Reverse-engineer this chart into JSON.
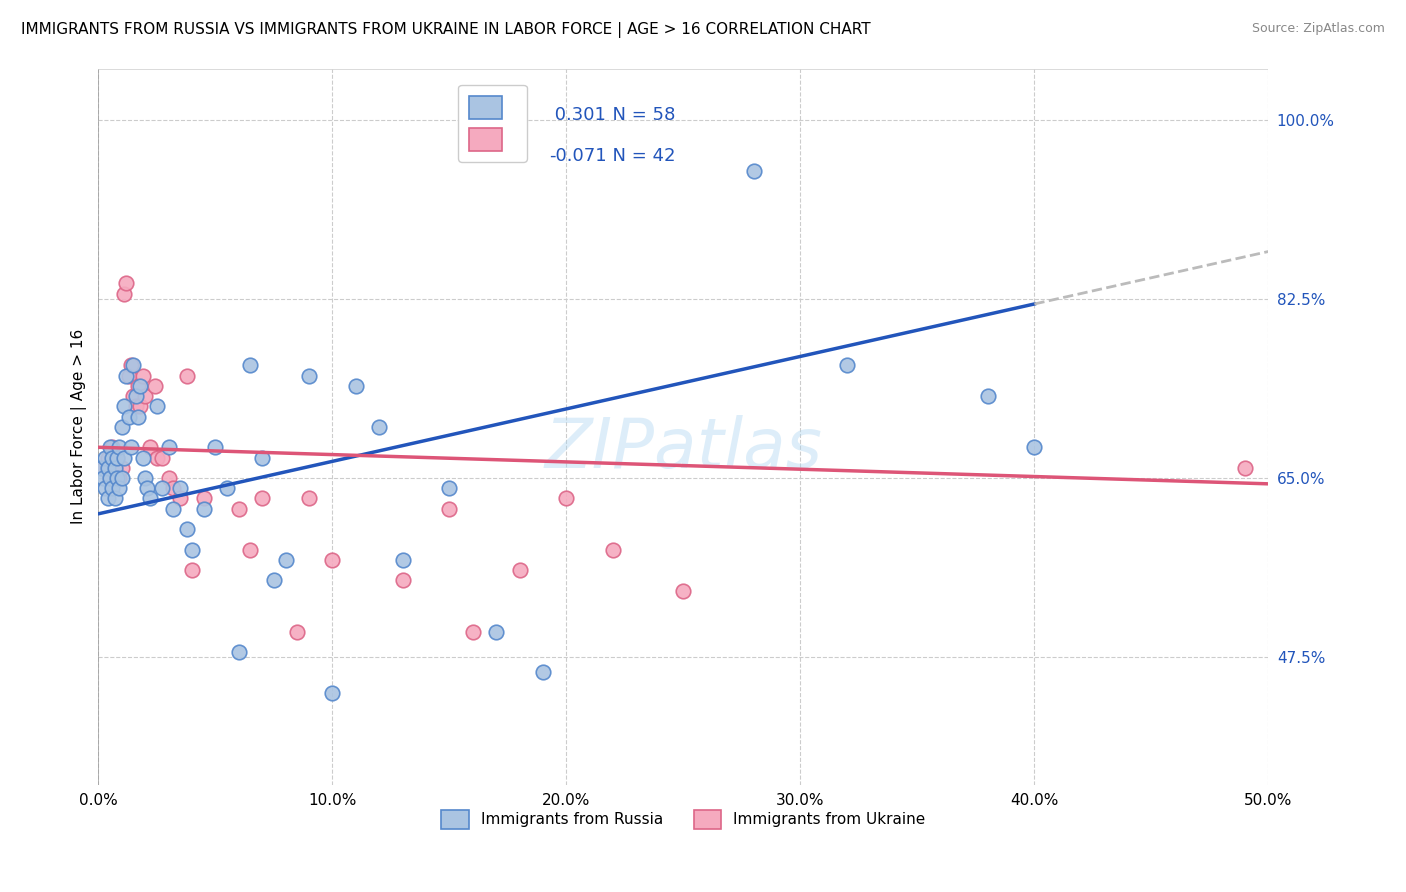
{
  "title": "IMMIGRANTS FROM RUSSIA VS IMMIGRANTS FROM UKRAINE IN LABOR FORCE | AGE > 16 CORRELATION CHART",
  "source": "Source: ZipAtlas.com",
  "ylabel": "In Labor Force | Age > 16",
  "xlim": [
    0.0,
    0.5
  ],
  "ylim": [
    0.35,
    1.05
  ],
  "ytick_positions": [
    0.475,
    0.65,
    0.825,
    1.0
  ],
  "ytick_labels": [
    "47.5%",
    "65.0%",
    "82.5%",
    "100.0%"
  ],
  "xtick_positions": [
    0.0,
    0.1,
    0.2,
    0.3,
    0.4,
    0.5
  ],
  "xtick_labels": [
    "0.0%",
    "10.0%",
    "20.0%",
    "30.0%",
    "40.0%",
    "50.0%"
  ],
  "russia_color": "#aac4e2",
  "ukraine_color": "#f5aabf",
  "russia_edge": "#5588cc",
  "ukraine_edge": "#dd6688",
  "trend_russia_color": "#2255bb",
  "trend_ukraine_color": "#dd5577",
  "trend_ext_color": "#bbbbbb",
  "legend_r_russia": " 0.301",
  "legend_n_russia": "58",
  "legend_r_ukraine": "-0.071",
  "legend_n_ukraine": "42",
  "russia_x": [
    0.001,
    0.002,
    0.003,
    0.003,
    0.004,
    0.004,
    0.005,
    0.005,
    0.006,
    0.006,
    0.007,
    0.007,
    0.008,
    0.008,
    0.009,
    0.009,
    0.01,
    0.01,
    0.011,
    0.011,
    0.012,
    0.013,
    0.014,
    0.015,
    0.016,
    0.017,
    0.018,
    0.019,
    0.02,
    0.021,
    0.022,
    0.025,
    0.027,
    0.03,
    0.032,
    0.035,
    0.038,
    0.04,
    0.045,
    0.05,
    0.055,
    0.06,
    0.065,
    0.07,
    0.075,
    0.08,
    0.09,
    0.1,
    0.11,
    0.12,
    0.13,
    0.15,
    0.17,
    0.19,
    0.28,
    0.32,
    0.38,
    0.4
  ],
  "russia_y": [
    0.66,
    0.65,
    0.67,
    0.64,
    0.66,
    0.63,
    0.68,
    0.65,
    0.67,
    0.64,
    0.66,
    0.63,
    0.67,
    0.65,
    0.68,
    0.64,
    0.7,
    0.65,
    0.72,
    0.67,
    0.75,
    0.71,
    0.68,
    0.76,
    0.73,
    0.71,
    0.74,
    0.67,
    0.65,
    0.64,
    0.63,
    0.72,
    0.64,
    0.68,
    0.62,
    0.64,
    0.6,
    0.58,
    0.62,
    0.68,
    0.64,
    0.48,
    0.76,
    0.67,
    0.55,
    0.57,
    0.75,
    0.44,
    0.74,
    0.7,
    0.57,
    0.64,
    0.5,
    0.46,
    0.95,
    0.76,
    0.73,
    0.68
  ],
  "ukraine_x": [
    0.002,
    0.004,
    0.005,
    0.006,
    0.007,
    0.008,
    0.009,
    0.01,
    0.011,
    0.012,
    0.013,
    0.014,
    0.015,
    0.016,
    0.017,
    0.018,
    0.019,
    0.02,
    0.022,
    0.024,
    0.025,
    0.027,
    0.03,
    0.032,
    0.035,
    0.038,
    0.04,
    0.045,
    0.06,
    0.065,
    0.07,
    0.085,
    0.09,
    0.1,
    0.13,
    0.15,
    0.16,
    0.18,
    0.2,
    0.22,
    0.25,
    0.49
  ],
  "ukraine_y": [
    0.66,
    0.67,
    0.65,
    0.68,
    0.66,
    0.67,
    0.65,
    0.66,
    0.83,
    0.84,
    0.75,
    0.76,
    0.73,
    0.72,
    0.74,
    0.72,
    0.75,
    0.73,
    0.68,
    0.74,
    0.67,
    0.67,
    0.65,
    0.64,
    0.63,
    0.75,
    0.56,
    0.63,
    0.62,
    0.58,
    0.63,
    0.5,
    0.63,
    0.57,
    0.55,
    0.62,
    0.5,
    0.56,
    0.63,
    0.58,
    0.54,
    0.66
  ],
  "russia_trend_x_max": 0.4,
  "watermark": "ZIPatlas",
  "background_color": "#ffffff",
  "grid_color": "#cccccc"
}
